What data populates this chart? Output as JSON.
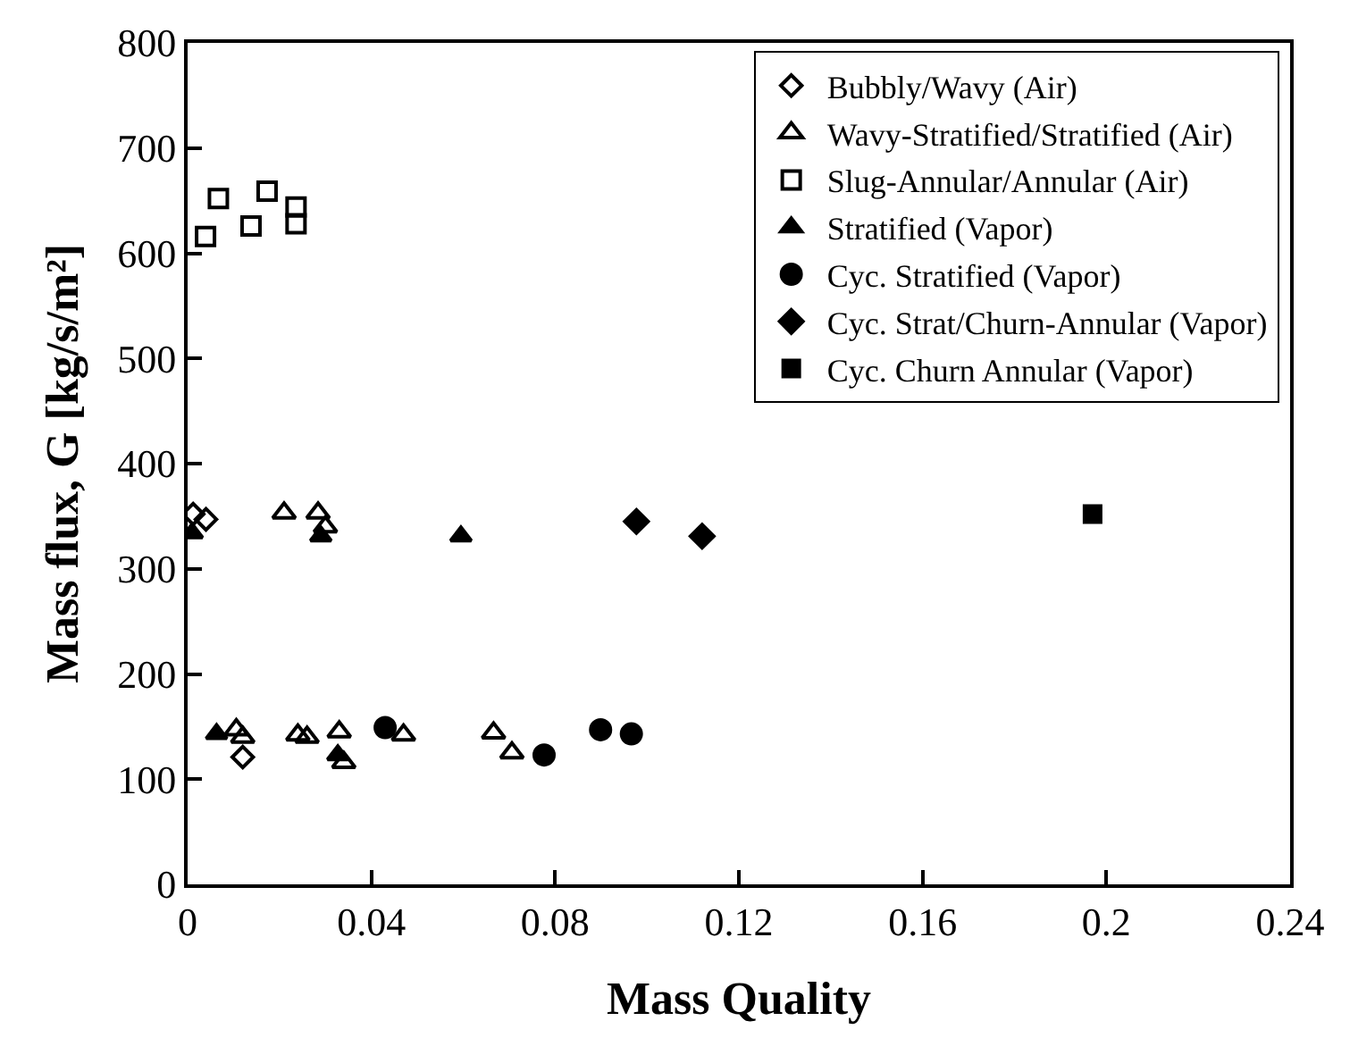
{
  "chart_data": {
    "type": "scatter",
    "xlabel": "Mass Quality",
    "ylabel": "Mass flux, G [kg/s/m²]",
    "xlim": [
      0,
      0.24
    ],
    "xticks": [
      0,
      0.04,
      0.08,
      0.12,
      0.16,
      0.2,
      0.24
    ],
    "ylim": [
      0,
      800
    ],
    "yticks": [
      0,
      100,
      200,
      300,
      400,
      500,
      600,
      700,
      800
    ],
    "legend": "top right",
    "series": [
      {
        "name": "Bubbly/Wavy (Air)",
        "color": "#000000",
        "marker": "diamond-open",
        "x": [
          0.0012,
          0.004,
          0.012
        ],
        "values": [
          352,
          347,
          121
        ]
      },
      {
        "name": "Wavy-Stratified/Stratified (Air)",
        "color": "#000000",
        "marker": "triangle-open",
        "x": [
          0.021,
          0.0284,
          0.03,
          0.0106,
          0.012,
          0.024,
          0.026,
          0.033,
          0.034,
          0.047,
          0.0666,
          0.0706
        ],
        "values": [
          353,
          353,
          340,
          147,
          140,
          142,
          140,
          145,
          116,
          142,
          144,
          125
        ]
      },
      {
        "name": "Slug-Annular/Annular (Air)",
        "color": "#000000",
        "marker": "square-open",
        "x": [
          0.0039,
          0.0067,
          0.0138,
          0.0173,
          0.0236,
          0.0236
        ],
        "values": [
          616,
          652,
          626,
          659,
          644,
          628
        ]
      },
      {
        "name": "Stratified (Vapor)",
        "color": "#000000",
        "marker": "triangle",
        "x": [
          0.001,
          0.029,
          0.0595,
          0.0063,
          0.0327
        ],
        "values": [
          334,
          331,
          331,
          143,
          123
        ]
      },
      {
        "name": "Cyc. Stratified (Vapor)",
        "color": "#000000",
        "marker": "circle",
        "x": [
          0.043,
          0.0776,
          0.0899,
          0.0966
        ],
        "values": [
          149,
          123,
          147,
          143
        ]
      },
      {
        "name": "Cyc. Strat/Churn-Annular (Vapor)",
        "color": "#000000",
        "marker": "diamond",
        "x": [
          0.0977,
          0.112
        ],
        "values": [
          345,
          331
        ]
      },
      {
        "name": "Cyc. Churn Annular (Vapor)",
        "color": "#000000",
        "marker": "square",
        "x": [
          0.197
        ],
        "values": [
          352
        ]
      }
    ]
  }
}
